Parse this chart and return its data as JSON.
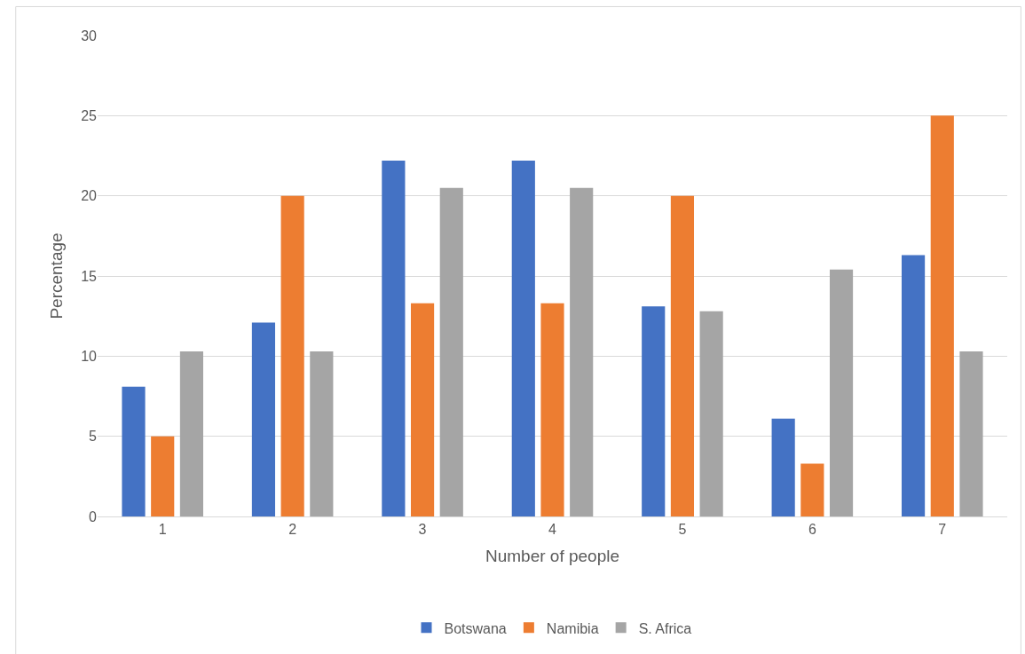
{
  "chart_data": {
    "type": "bar",
    "xlabel": "Number of people",
    "ylabel": "Percentage",
    "categories": [
      "1",
      "2",
      "3",
      "4",
      "5",
      "6",
      "7"
    ],
    "series": [
      {
        "name": "Botswana",
        "color": "#4472c4",
        "values": [
          8.1,
          12.1,
          22.2,
          22.2,
          13.1,
          6.1,
          16.3
        ]
      },
      {
        "name": "Namibia",
        "color": "#ed7d31",
        "values": [
          5,
          20,
          13.3,
          13.3,
          20,
          3.3,
          25
        ]
      },
      {
        "name": "S. Africa",
        "color": "#a5a5a5",
        "values": [
          10.3,
          10.3,
          20.5,
          20.5,
          12.8,
          15.4,
          10.3
        ]
      }
    ],
    "ylim": [
      0,
      30
    ],
    "yticks": [
      0,
      5,
      10,
      15,
      20,
      25,
      30
    ],
    "grid": "y",
    "legend": "bottom"
  }
}
